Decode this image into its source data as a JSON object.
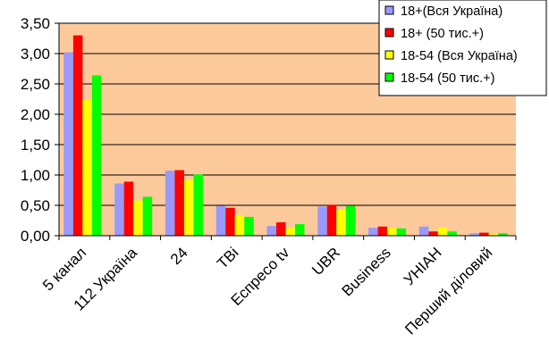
{
  "chart_data": {
    "type": "bar",
    "categories": [
      "5 канал",
      "112 Україна",
      "24",
      "TBi",
      "Еспресо tv",
      "UBR",
      "Business",
      "УНІАН",
      "Перший діловий"
    ],
    "series": [
      {
        "name": "18+(Вся Україна)",
        "color": "#9999ff",
        "values": [
          3.02,
          0.86,
          1.07,
          0.49,
          0.16,
          0.48,
          0.13,
          0.15,
          0.04
        ]
      },
      {
        "name": "18+ (50 тис.+)",
        "color": "#ff0000",
        "values": [
          3.3,
          0.89,
          1.08,
          0.46,
          0.22,
          0.51,
          0.15,
          0.07,
          0.05
        ]
      },
      {
        "name": "18-54 (Вся Україна)",
        "color": "#ffff00",
        "values": [
          2.24,
          0.58,
          0.92,
          0.34,
          0.13,
          0.43,
          0.13,
          0.13,
          0.03
        ]
      },
      {
        "name": "18-54 (50 тис.+)",
        "color": "#00ff00",
        "values": [
          2.64,
          0.64,
          1.01,
          0.31,
          0.19,
          0.49,
          0.12,
          0.07,
          0.04
        ]
      }
    ],
    "y_ticks": [
      "0,00",
      "0,50",
      "1,00",
      "1,50",
      "2,00",
      "2,50",
      "3,00",
      "3,50"
    ],
    "ylim": [
      0,
      3.5
    ],
    "title": "",
    "xlabel": "",
    "ylabel": "",
    "grid": true,
    "legend": "top-right",
    "plot_background": "#fcc99b"
  }
}
